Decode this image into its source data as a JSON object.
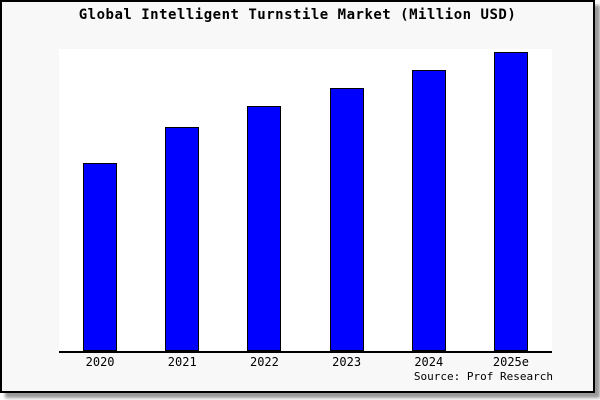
{
  "page": {
    "background": "#ffffff"
  },
  "frame": {
    "background": "#f8f8f8",
    "border_color": "#000000",
    "shadow_color": "#9a9a9a"
  },
  "source": "Source: Prof Research",
  "chart_data": {
    "type": "bar",
    "title": "Global Intelligent Turnstile Market (Million USD)",
    "categories": [
      "2020",
      "2021",
      "2022",
      "2023",
      "2024",
      "2025e"
    ],
    "values": [
      63,
      75,
      82,
      88,
      94,
      100
    ],
    "xlabel": "",
    "ylabel": "",
    "ylim": [
      0,
      101
    ],
    "grid": false,
    "legend": false,
    "y_tick_labels_visible": false,
    "values_note": "Chart shows no y-axis scale or data labels; values are relative bar heights normalized to 2025e = 100.",
    "bar_color": "#0000ff",
    "bar_border_color": "#000000",
    "plot_background": "#ffffff",
    "axis_line_color": "#000000"
  }
}
